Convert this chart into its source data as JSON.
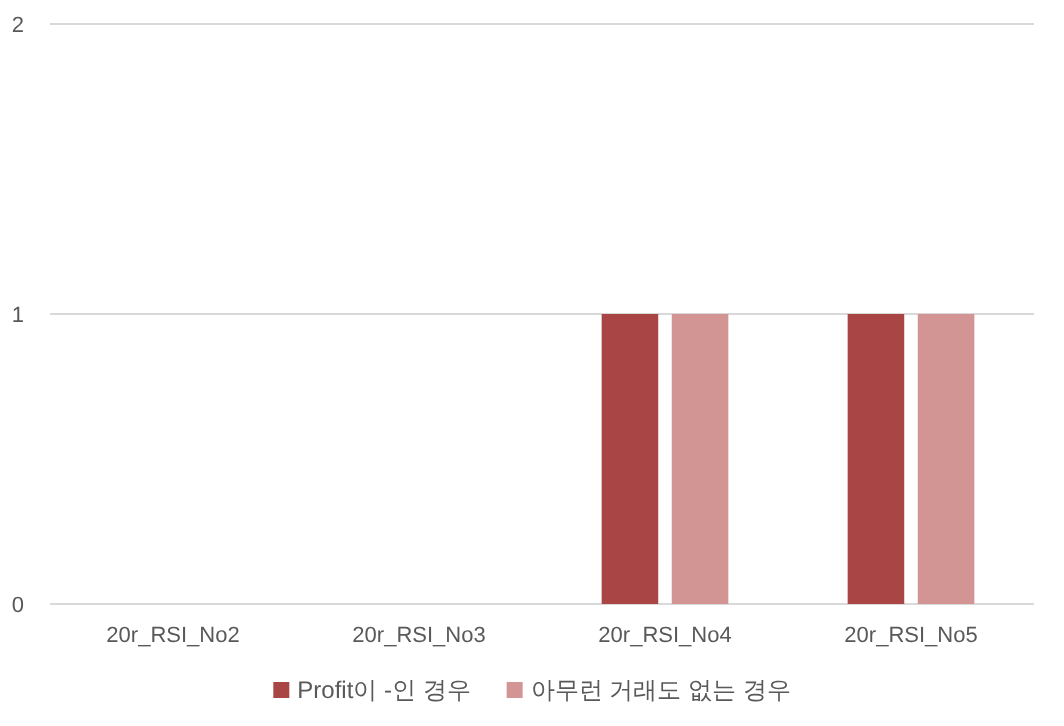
{
  "chart_data": {
    "type": "bar",
    "categories": [
      "20r_RSI_No2",
      "20r_RSI_No3",
      "20r_RSI_No4",
      "20r_RSI_No5"
    ],
    "series": [
      {
        "name": "Profit이 -인 경우",
        "color": "#a94545",
        "values": [
          0,
          0,
          1,
          1
        ]
      },
      {
        "name": "아무런 거래도 없는 경우",
        "color": "#d39494",
        "values": [
          0,
          0,
          1,
          1
        ]
      }
    ],
    "ylim": [
      0,
      2
    ],
    "yticks": [
      0,
      1,
      2
    ],
    "grid": "y",
    "legend": "bottom"
  }
}
